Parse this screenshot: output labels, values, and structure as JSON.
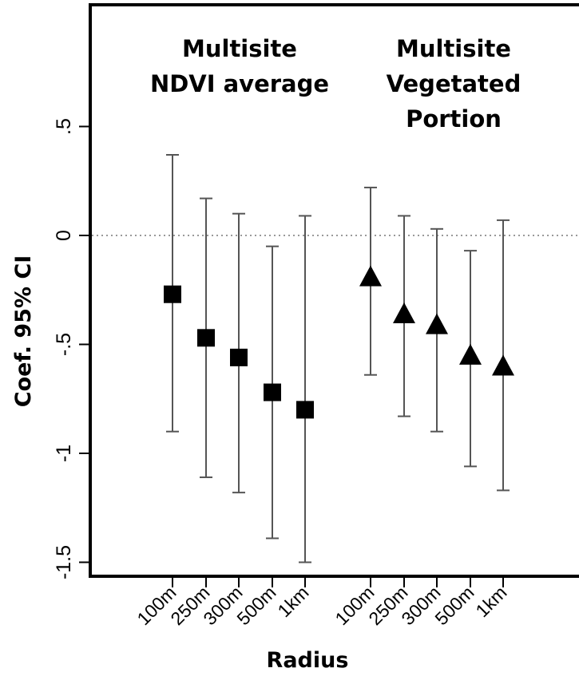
{
  "chart_data": {
    "type": "scatter",
    "subtype": "point-estimate-with-95ci",
    "ylabel": "Coef. 95% CI",
    "xlabel": "Radius",
    "ylim": [
      -1.55,
      1.05
    ],
    "yticks": [
      {
        "value": 0.5,
        "label": ".5"
      },
      {
        "value": 0,
        "label": "0"
      },
      {
        "value": -0.5,
        "label": "-.5"
      },
      {
        "value": -1,
        "label": "-1"
      },
      {
        "value": -1.5,
        "label": "-1.5"
      }
    ],
    "reference_line": {
      "value": 0,
      "style": "dotted"
    },
    "groups": [
      {
        "label_lines": [
          "Multisite",
          "NDVI average"
        ],
        "marker": "square",
        "points": [
          {
            "x": "100m",
            "estimate": -0.27,
            "lower": -0.9,
            "upper": 0.37
          },
          {
            "x": "250m",
            "estimate": -0.47,
            "lower": -1.11,
            "upper": 0.17
          },
          {
            "x": "300m",
            "estimate": -0.56,
            "lower": -1.18,
            "upper": 0.1
          },
          {
            "x": "500m",
            "estimate": -0.72,
            "lower": -1.39,
            "upper": -0.05
          },
          {
            "x": "1km",
            "estimate": -0.8,
            "lower": -1.5,
            "upper": 0.09
          }
        ]
      },
      {
        "label_lines": [
          "Multisite",
          "Vegetated",
          "Portion"
        ],
        "marker": "triangle",
        "points": [
          {
            "x": "100m",
            "estimate": -0.2,
            "lower": -0.64,
            "upper": 0.22
          },
          {
            "x": "250m",
            "estimate": -0.37,
            "lower": -0.83,
            "upper": 0.09
          },
          {
            "x": "300m",
            "estimate": -0.42,
            "lower": -0.9,
            "upper": 0.03
          },
          {
            "x": "500m",
            "estimate": -0.56,
            "lower": -1.06,
            "upper": -0.07
          },
          {
            "x": "1km",
            "estimate": -0.61,
            "lower": -1.17,
            "upper": 0.07
          }
        ]
      }
    ],
    "colors": {
      "marker": "#000000",
      "errorbar": "#555555",
      "reference": "#999999",
      "frame": "#000000"
    }
  }
}
